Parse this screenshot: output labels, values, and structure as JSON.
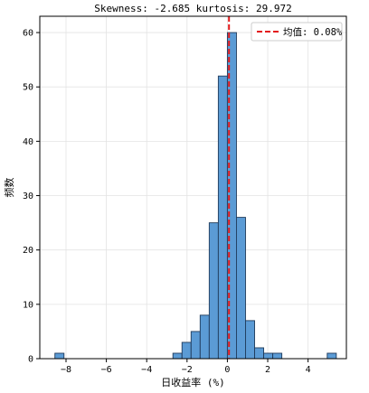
{
  "chart_data": {
    "type": "bar",
    "title_line_1": "",
    "title_line_2": "Skewness: -2.685 kurtosis: 29.972",
    "xlabel": "日收益率 (%)",
    "ylabel": "频数",
    "xlim": [
      -9.3,
      5.9
    ],
    "ylim": [
      0,
      63
    ],
    "xticks": [
      -8,
      -6,
      -4,
      -2,
      0,
      2,
      4
    ],
    "yticks": [
      0,
      10,
      20,
      30,
      40,
      50,
      60
    ],
    "grid": true,
    "bar_color": "#5b9bd5",
    "bar_edge_color": "#1f3a5a",
    "bin_width": 0.45,
    "bins": [
      {
        "left": -8.55,
        "count": 1
      },
      {
        "left": -2.7,
        "count": 1
      },
      {
        "left": -2.25,
        "count": 3
      },
      {
        "left": -1.8,
        "count": 5
      },
      {
        "left": -1.35,
        "count": 8
      },
      {
        "left": -0.9,
        "count": 25
      },
      {
        "left": -0.45,
        "count": 52
      },
      {
        "left": 0.0,
        "count": 60
      },
      {
        "left": 0.45,
        "count": 26
      },
      {
        "left": 0.9,
        "count": 7
      },
      {
        "left": 1.35,
        "count": 2
      },
      {
        "left": 1.8,
        "count": 1
      },
      {
        "left": 2.25,
        "count": 1
      },
      {
        "left": 4.95,
        "count": 1
      }
    ],
    "mean_line": {
      "x": 0.08,
      "color": "#e31a1c",
      "style": "dashed"
    },
    "legend": {
      "label": "均值: 0.08%",
      "placement": "top-right"
    }
  }
}
